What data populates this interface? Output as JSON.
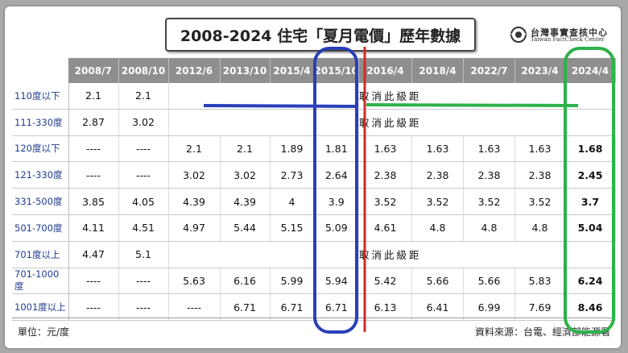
{
  "title": "2008-2024 住宅「夏月電價」歷年數據",
  "logo": {
    "name_cn": "台灣事實查核中心",
    "name_en": "Taiwan FactCheck Center",
    "icon": "eye-icon"
  },
  "table": {
    "headers": [
      "2008/7",
      "2008/10",
      "2012/6",
      "2013/10",
      "2015/4",
      "2015/10",
      "2016/4",
      "2018/4",
      "2022/7",
      "2023/4",
      "2024/4"
    ],
    "cancel_text": "取消此級距",
    "rows": [
      {
        "label": "110度以下",
        "cells": [
          "2.1",
          "2.1"
        ]
      },
      {
        "label": "111-330度",
        "cells": [
          "2.87",
          "3.02"
        ]
      },
      {
        "label": "120度以下",
        "cells": [
          "----",
          "----",
          "2.1",
          "2.1",
          "1.89",
          "1.81",
          "1.63",
          "1.63",
          "1.63",
          "1.63",
          "1.68"
        ]
      },
      {
        "label": "121-330度",
        "cells": [
          "----",
          "----",
          "3.02",
          "3.02",
          "2.73",
          "2.64",
          "2.38",
          "2.38",
          "2.38",
          "2.38",
          "2.45"
        ]
      },
      {
        "label": "331-500度",
        "cells": [
          "3.85",
          "4.05",
          "4.39",
          "4.39",
          "4",
          "3.9",
          "3.52",
          "3.52",
          "3.52",
          "3.52",
          "3.7"
        ]
      },
      {
        "label": "501-700度",
        "cells": [
          "4.11",
          "4.51",
          "4.97",
          "5.44",
          "5.15",
          "5.09",
          "4.61",
          "4.8",
          "4.8",
          "4.8",
          "5.04"
        ]
      },
      {
        "label": "701度以上",
        "cells": [
          "4.47",
          "5.1"
        ]
      },
      {
        "label": "701-1000度",
        "cells": [
          "----",
          "----",
          "5.63",
          "6.16",
          "5.99",
          "5.94",
          "5.42",
          "5.66",
          "5.66",
          "5.83",
          "6.24"
        ]
      },
      {
        "label": "1001度以上",
        "cells": [
          "----",
          "----",
          "----",
          "6.71",
          "6.71",
          "6.71",
          "6.13",
          "6.41",
          "6.99",
          "7.69",
          "8.46"
        ]
      }
    ]
  },
  "footer": {
    "unit": "單位：元/度",
    "source": "資料來源：台電、經濟部能源署"
  },
  "annotation_colors": {
    "blue": "#2a3fb8",
    "green": "#2db24a",
    "red": "#d62828"
  }
}
